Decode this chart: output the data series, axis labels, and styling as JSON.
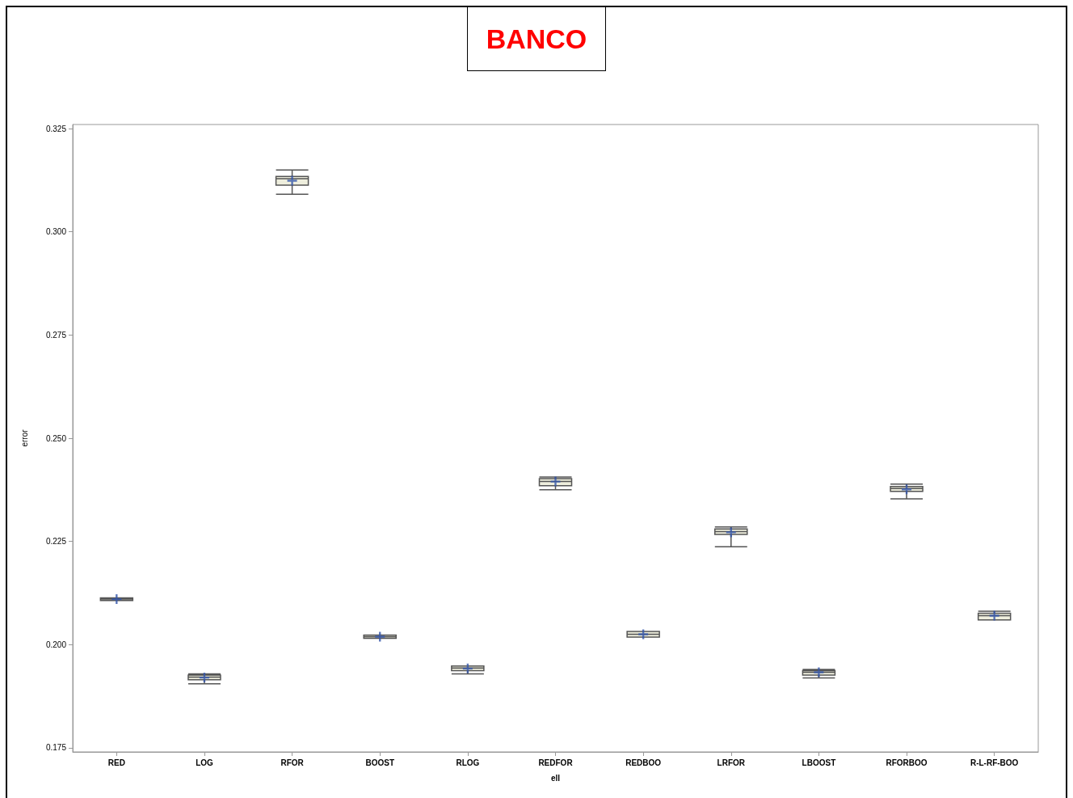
{
  "chart_data": {
    "type": "box",
    "title": "BANCO",
    "xlabel": "ell",
    "ylabel": "error",
    "categories": [
      "RED",
      "LOG",
      "RFOR",
      "BOOST",
      "RLOG",
      "REDFOR",
      "REDBOO",
      "LRFOR",
      "LBOOST",
      "RFORBOO",
      "R-L-RF-BOO"
    ],
    "boxes": [
      {
        "low": 0.2107,
        "q1": 0.2107,
        "median": 0.211,
        "q3": 0.2113,
        "high": 0.2113,
        "mean": 0.211
      },
      {
        "low": 0.1905,
        "q1": 0.1915,
        "median": 0.1921,
        "q3": 0.1926,
        "high": 0.1929,
        "mean": 0.192
      },
      {
        "low": 0.3091,
        "q1": 0.3113,
        "median": 0.3129,
        "q3": 0.3134,
        "high": 0.315,
        "mean": 0.3124
      },
      {
        "low": 0.2015,
        "q1": 0.2015,
        "median": 0.2019,
        "q3": 0.2023,
        "high": 0.2023,
        "mean": 0.2019
      },
      {
        "low": 0.1929,
        "q1": 0.1937,
        "median": 0.1943,
        "q3": 0.1948,
        "high": 0.1948,
        "mean": 0.1942
      },
      {
        "low": 0.2375,
        "q1": 0.2385,
        "median": 0.2395,
        "q3": 0.2402,
        "high": 0.2406,
        "mean": 0.2395
      },
      {
        "low": 0.2018,
        "q1": 0.2018,
        "median": 0.2025,
        "q3": 0.2032,
        "high": 0.2032,
        "mean": 0.2025
      },
      {
        "low": 0.2237,
        "q1": 0.2267,
        "median": 0.2274,
        "q3": 0.228,
        "high": 0.2285,
        "mean": 0.2272
      },
      {
        "low": 0.1919,
        "q1": 0.1926,
        "median": 0.1933,
        "q3": 0.1937,
        "high": 0.194,
        "mean": 0.1933
      },
      {
        "low": 0.2353,
        "q1": 0.2371,
        "median": 0.2378,
        "q3": 0.2383,
        "high": 0.2389,
        "mean": 0.2376
      },
      {
        "low": 0.206,
        "q1": 0.206,
        "median": 0.207,
        "q3": 0.2076,
        "high": 0.2081,
        "mean": 0.207
      }
    ],
    "color": "#eeeedd",
    "ylim": [
      0.174,
      0.326
    ],
    "yticks": [
      0.175,
      {
        "value": 0.2,
        "label": "0.200"
      },
      0.225,
      {
        "value": 0.25,
        "label": "0.250"
      },
      0.275,
      {
        "value": 0.3,
        "label": "0.300"
      },
      0.325
    ],
    "grid": false
  }
}
